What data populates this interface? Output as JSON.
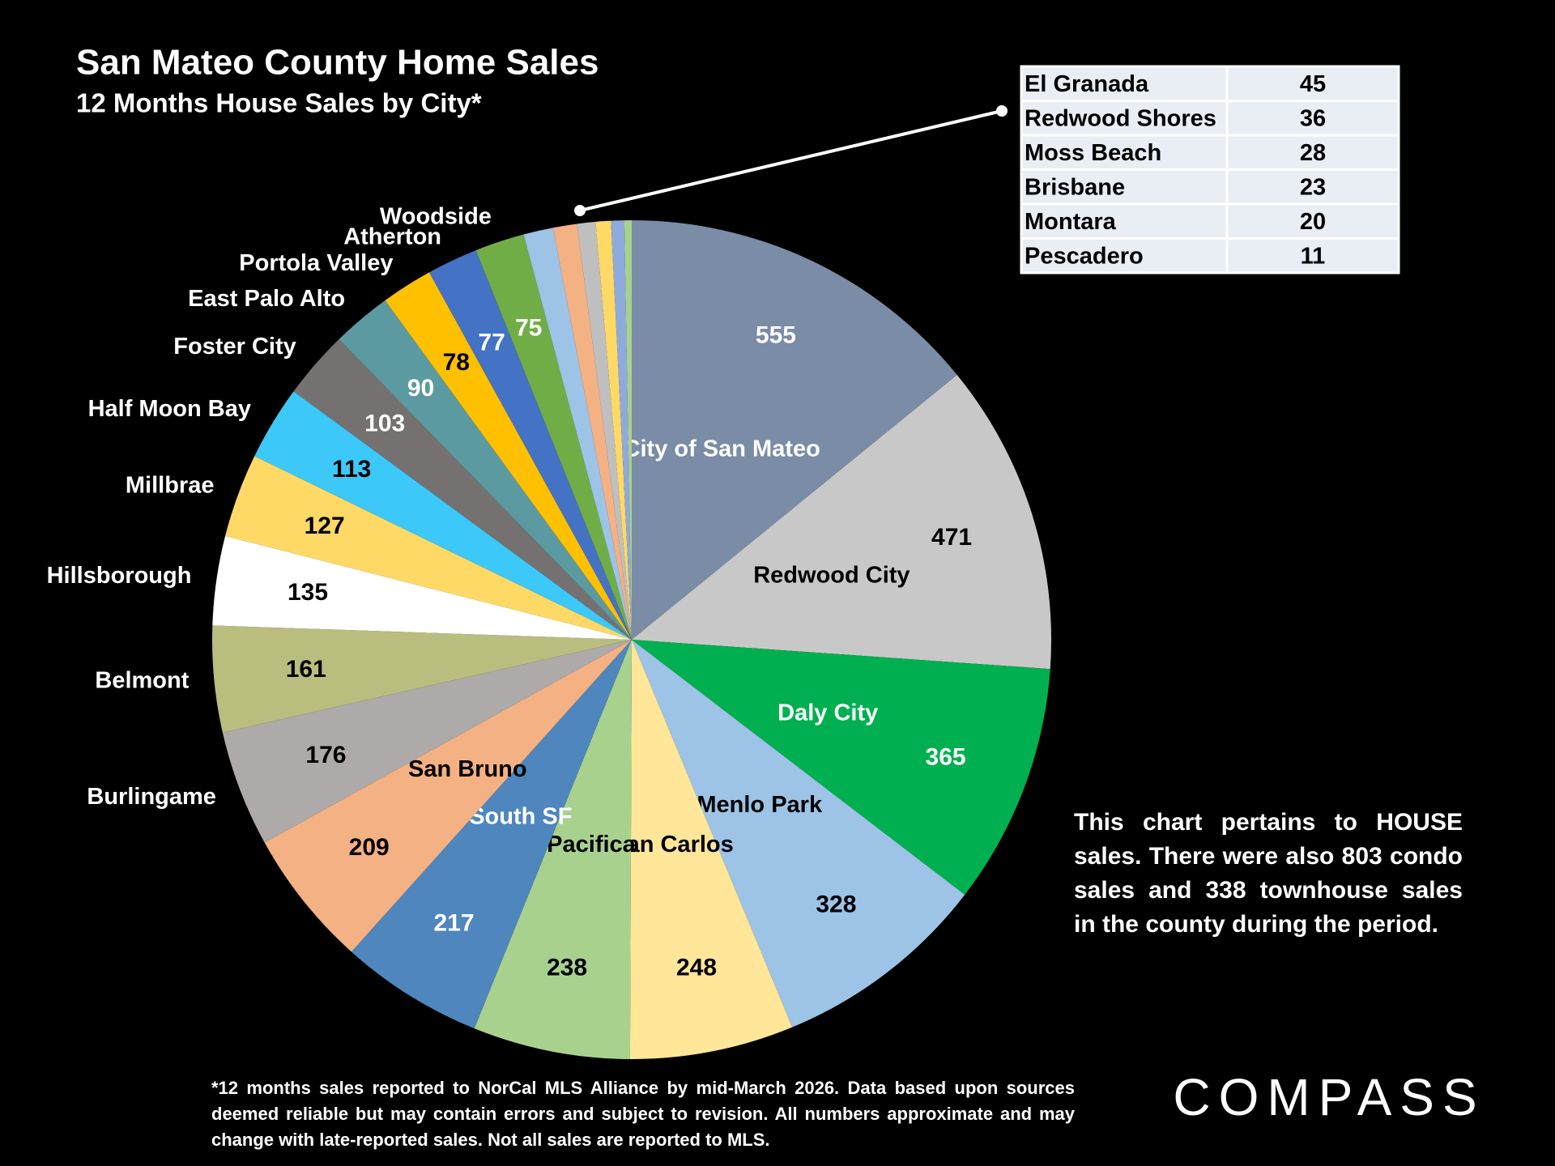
{
  "chart_data": {
    "type": "pie",
    "title": "San Mateo County Home Sales",
    "subtitle": "12 Months House Sales by City*",
    "categories": [
      "City of San Mateo",
      "Redwood City",
      "Daly City",
      "Menlo Park",
      "San Carlos",
      "Pacifica",
      "South SF",
      "San Bruno",
      "Burlingame",
      "Belmont",
      "Hillsborough",
      "Millbrae",
      "Half Moon Bay",
      "Foster City",
      "East Palo Alto",
      "Portola Valley",
      "Atherton",
      "Woodside",
      "El Granada",
      "Redwood Shores",
      "Moss Beach",
      "Brisbane",
      "Montara",
      "Pescadero"
    ],
    "values": [
      555,
      471,
      365,
      328,
      248,
      238,
      217,
      209,
      176,
      161,
      135,
      127,
      113,
      103,
      90,
      78,
      77,
      75,
      45,
      36,
      28,
      23,
      20,
      11
    ],
    "colors": [
      "#7a8ca6",
      "#c8c8c8",
      "#00b050",
      "#9dc3e6",
      "#ffe699",
      "#a9d18e",
      "#4e86bd",
      "#f4b183",
      "#aeaaaa",
      "#b9bd7e",
      "#ffffff",
      "#ffd966",
      "#3cc8f8",
      "#767171",
      "#5b9aa0",
      "#ffc000",
      "#4472c4",
      "#70ad47",
      "#9dc3e6",
      "#f4b183",
      "#bfbfbf",
      "#ffd966",
      "#8faadc",
      "#a9d18e"
    ],
    "note": "This chart pertains to HOUSE sales. There were also 803 condo sales and 338 townhouse sales in the county during the period.",
    "footnote": "*12 months sales reported to NorCal MLS Alliance by mid-March 2026. Data based upon sources deemed reliable but may contain errors and subject to revision. All numbers approximate and may change with late-reported sales. Not all sales are reported to MLS.",
    "brand": "COMPASS"
  }
}
